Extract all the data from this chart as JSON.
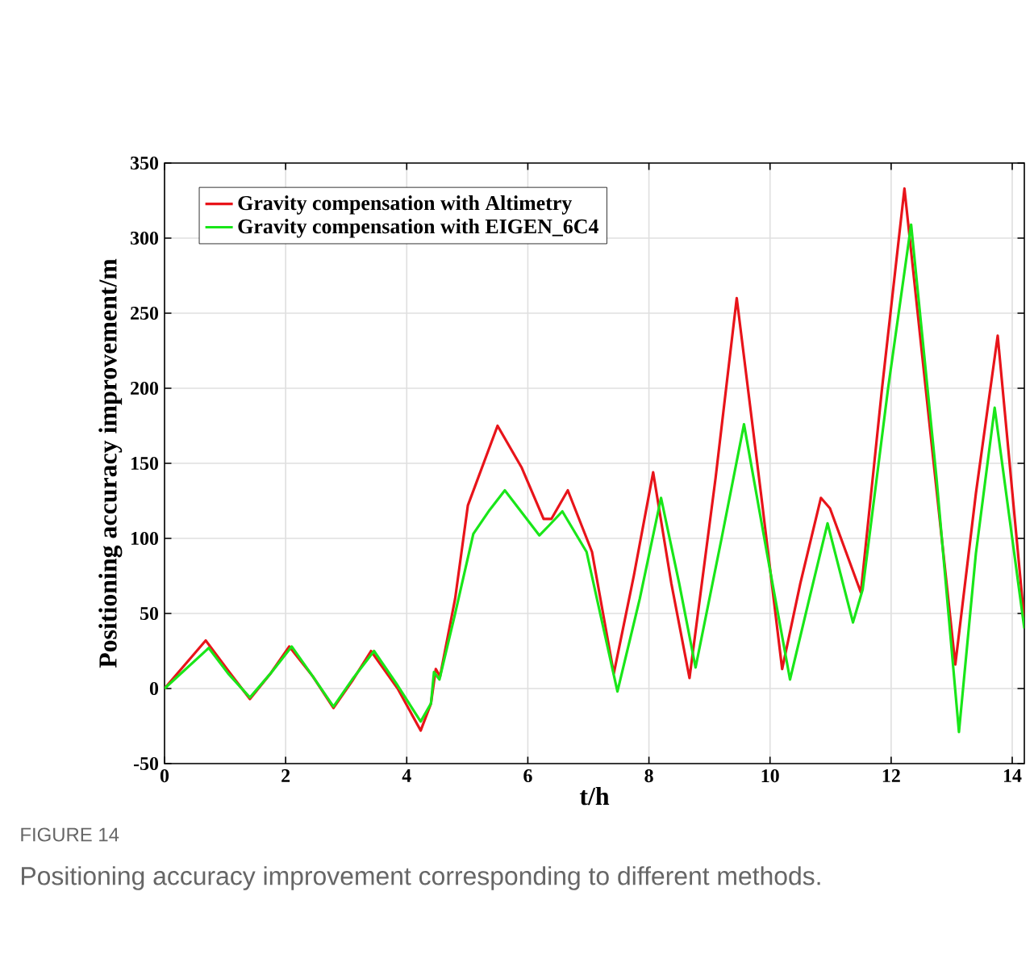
{
  "chart_data": {
    "type": "line",
    "xlabel": "t/h",
    "ylabel": "Positioning accuracy improvement/m",
    "xlim": [
      0,
      14.2
    ],
    "xticks": [
      0,
      2,
      4,
      6,
      8,
      10,
      12,
      14
    ],
    "ylim": [
      -50,
      350
    ],
    "yticks": [
      -50,
      0,
      50,
      100,
      150,
      200,
      250,
      300,
      350
    ],
    "grid": true,
    "legend": "top left",
    "marker": "none",
    "line_style": "solid",
    "annotations": [
      "FIGURE 14",
      "Positioning accuracy improvement corresponding to different methods."
    ],
    "series": [
      {
        "name": "Gravity compensation with Altimetry",
        "color": "#e8141a",
        "x": [
          0,
          0.68,
          1.05,
          1.41,
          1.75,
          2.06,
          2.45,
          2.79,
          3.1,
          3.41,
          3.85,
          4.23,
          4.4,
          4.48,
          4.55,
          4.8,
          5.01,
          5.5,
          5.9,
          6.26,
          6.39,
          6.66,
          7.06,
          7.42,
          7.75,
          8.07,
          8.37,
          8.67,
          9.1,
          9.45,
          9.85,
          10.2,
          10.5,
          10.84,
          10.99,
          11.5,
          11.85,
          12.22,
          12.65,
          13.06,
          13.4,
          13.76,
          14.2
        ],
        "values": [
          0,
          32,
          12,
          -7,
          10,
          28,
          8,
          -13,
          5,
          25,
          0,
          -28,
          -10,
          13,
          8,
          60,
          122,
          175,
          147,
          113,
          113,
          132,
          91,
          10,
          75,
          144,
          70,
          7,
          140,
          260,
          130,
          13,
          70,
          127,
          120,
          64,
          200,
          333,
          170,
          16,
          130,
          235,
          45
        ]
      },
      {
        "name": "Gravity compensation with EIGEN_6C4",
        "color": "#19e619",
        "x": [
          0,
          0.73,
          1.05,
          1.41,
          1.75,
          2.1,
          2.45,
          2.79,
          3.1,
          3.46,
          3.85,
          4.23,
          4.4,
          4.45,
          4.54,
          4.8,
          5.1,
          5.37,
          5.62,
          6.19,
          6.36,
          6.57,
          6.97,
          7.48,
          7.85,
          8.2,
          8.5,
          8.77,
          9.2,
          9.57,
          9.95,
          10.33,
          10.65,
          10.95,
          11.37,
          11.53,
          11.95,
          12.33,
          12.75,
          13.12,
          13.4,
          13.71,
          14.2
        ],
        "values": [
          0,
          27,
          10,
          -6,
          10,
          28,
          8,
          -12,
          6,
          25,
          2,
          -22,
          -10,
          11,
          6,
          50,
          103,
          119,
          132,
          102,
          109,
          118,
          91,
          -2,
          60,
          127,
          70,
          14,
          100,
          176,
          90,
          6,
          60,
          110,
          44,
          66,
          200,
          309,
          140,
          -29,
          90,
          187,
          40
        ]
      }
    ]
  }
}
